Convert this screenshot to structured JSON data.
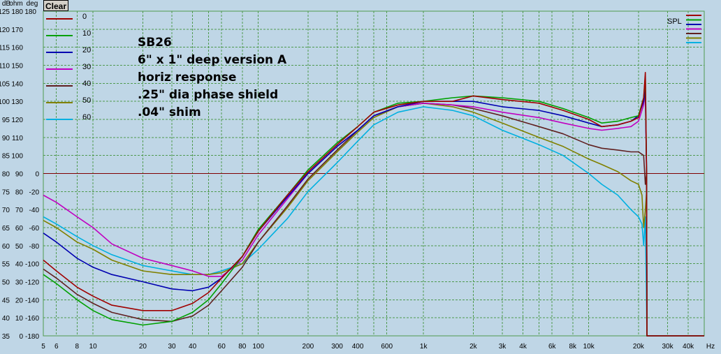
{
  "toolbar": {
    "clear_label": "Clear"
  },
  "colors": {
    "background": "#bfd6e6",
    "grid": "#4f9a4f",
    "reference_line": "#800000"
  },
  "chart_data": {
    "type": "line",
    "x_scale": "log",
    "xlim": [
      5,
      50000
    ],
    "x_ticks": [
      5,
      6,
      8,
      10,
      20,
      30,
      40,
      50,
      60,
      80,
      100,
      200,
      300,
      400,
      500,
      600,
      1000,
      2000,
      3000,
      4000,
      5000,
      6000,
      8000,
      10000,
      20000,
      30000,
      40000
    ],
    "x_tick_labels": [
      "5",
      "6",
      "8",
      "10",
      "20",
      "30",
      "40",
      "60",
      "80",
      "100",
      "200",
      "300",
      "400",
      "600",
      "1k",
      "2k",
      "3k",
      "4k",
      "6k",
      "8k",
      "10k",
      "20k",
      "30k",
      "40k"
    ],
    "x_tick_label_values": [
      5,
      6,
      8,
      10,
      20,
      30,
      40,
      60,
      80,
      100,
      200,
      300,
      400,
      600,
      1000,
      2000,
      3000,
      4000,
      6000,
      8000,
      10000,
      20000,
      30000,
      40000
    ],
    "x_unit": "Hz",
    "axis_headers": [
      "dB",
      "ohm",
      "deg"
    ],
    "ylim": [
      35,
      125
    ],
    "y_ticks": [
      35,
      40,
      45,
      50,
      55,
      60,
      65,
      70,
      75,
      80,
      85,
      90,
      95,
      100,
      105,
      110,
      115,
      120,
      125
    ],
    "y_tick_labels_db": [
      "35",
      "40",
      "45",
      "50",
      "55",
      "60",
      "65",
      "70",
      "75",
      "80",
      "85",
      "90",
      "95",
      "100",
      "105",
      "110",
      "115",
      "120",
      "125"
    ],
    "y_tick_labels_ohm": [
      "0",
      "10",
      "20",
      "30",
      "40",
      "50",
      "60",
      "70",
      "80",
      "90",
      "100",
      "110",
      "120",
      "130",
      "140",
      "150",
      "160",
      "170",
      "180"
    ],
    "y_tick_labels_deg": [
      "-180",
      "-160",
      "-140",
      "-120",
      "-100",
      "-80",
      "-60",
      "-40",
      "-20",
      "0",
      "",
      "",
      "",
      "",
      "",
      "",
      "",
      "",
      ""
    ],
    "reference_line_y": 80,
    "legend_right_label": "SPL",
    "annotation_lines": [
      "SB26",
      "6\" x 1\" deep version A",
      "horiz response",
      ".25\" dia phase shield",
      ".04\" shim"
    ],
    "series": [
      {
        "name": "0",
        "color": "#a00000",
        "points": [
          [
            5,
            56
          ],
          [
            6,
            53
          ],
          [
            8,
            48.5
          ],
          [
            10,
            46
          ],
          [
            13,
            43.5
          ],
          [
            20,
            42
          ],
          [
            30,
            42
          ],
          [
            40,
            44
          ],
          [
            50,
            47
          ],
          [
            60,
            51
          ],
          [
            80,
            57
          ],
          [
            100,
            64
          ],
          [
            150,
            74
          ],
          [
            200,
            80.5
          ],
          [
            300,
            88
          ],
          [
            400,
            93
          ],
          [
            500,
            97
          ],
          [
            700,
            99
          ],
          [
            1000,
            100
          ],
          [
            1500,
            100
          ],
          [
            2000,
            101.5
          ],
          [
            3000,
            100.5
          ],
          [
            5000,
            99.5
          ],
          [
            7000,
            97.5
          ],
          [
            10000,
            95
          ],
          [
            12000,
            93
          ],
          [
            15000,
            93.5
          ],
          [
            18000,
            94.5
          ],
          [
            20000,
            95.5
          ],
          [
            21500,
            101
          ],
          [
            22000,
            108
          ],
          [
            22400,
            80
          ],
          [
            22500,
            35
          ],
          [
            50000,
            35
          ]
        ]
      },
      {
        "name": "10",
        "color": "#00a000",
        "points": [
          [
            5,
            52
          ],
          [
            6,
            49.5
          ],
          [
            8,
            45
          ],
          [
            10,
            42
          ],
          [
            13,
            39.5
          ],
          [
            20,
            38
          ],
          [
            30,
            39
          ],
          [
            40,
            41.5
          ],
          [
            50,
            45
          ],
          [
            60,
            49.5
          ],
          [
            80,
            57
          ],
          [
            100,
            64.5
          ],
          [
            150,
            74
          ],
          [
            200,
            81
          ],
          [
            300,
            88.5
          ],
          [
            400,
            93
          ],
          [
            500,
            97
          ],
          [
            700,
            99.5
          ],
          [
            1000,
            100
          ],
          [
            1500,
            101
          ],
          [
            2000,
            101.5
          ],
          [
            3000,
            101
          ],
          [
            5000,
            100
          ],
          [
            7000,
            98
          ],
          [
            10000,
            95.5
          ],
          [
            12000,
            94
          ],
          [
            15000,
            94.5
          ],
          [
            18000,
            95.5
          ],
          [
            20000,
            96
          ],
          [
            21500,
            101
          ],
          [
            22000,
            107
          ],
          [
            22400,
            80
          ],
          [
            22500,
            35
          ],
          [
            50000,
            35
          ]
        ]
      },
      {
        "name": "20",
        "color": "#0000b0",
        "points": [
          [
            5,
            63.5
          ],
          [
            6,
            61
          ],
          [
            8,
            56.5
          ],
          [
            10,
            54
          ],
          [
            13,
            52
          ],
          [
            20,
            50
          ],
          [
            30,
            48
          ],
          [
            40,
            47.5
          ],
          [
            50,
            48.5
          ],
          [
            60,
            51
          ],
          [
            80,
            57
          ],
          [
            100,
            64
          ],
          [
            150,
            73.5
          ],
          [
            200,
            80
          ],
          [
            300,
            87.5
          ],
          [
            400,
            92
          ],
          [
            500,
            96
          ],
          [
            700,
            98.5
          ],
          [
            1000,
            100
          ],
          [
            1500,
            100
          ],
          [
            2000,
            100
          ],
          [
            3000,
            98.5
          ],
          [
            5000,
            97.5
          ],
          [
            7000,
            96
          ],
          [
            10000,
            94
          ],
          [
            12000,
            93
          ],
          [
            15000,
            93.5
          ],
          [
            18000,
            94.5
          ],
          [
            20000,
            96
          ],
          [
            21500,
            100
          ],
          [
            22000,
            103
          ],
          [
            22400,
            80
          ],
          [
            22500,
            35
          ],
          [
            50000,
            35
          ]
        ]
      },
      {
        "name": "30",
        "color": "#c000c0",
        "points": [
          [
            5,
            74
          ],
          [
            6,
            72
          ],
          [
            8,
            68
          ],
          [
            10,
            65
          ],
          [
            13,
            60.5
          ],
          [
            20,
            56.5
          ],
          [
            30,
            54.5
          ],
          [
            40,
            53
          ],
          [
            50,
            51.5
          ],
          [
            60,
            51.5
          ],
          [
            80,
            56
          ],
          [
            100,
            63
          ],
          [
            150,
            73
          ],
          [
            200,
            80
          ],
          [
            300,
            87.5
          ],
          [
            400,
            92
          ],
          [
            500,
            96
          ],
          [
            700,
            98.5
          ],
          [
            1000,
            99.5
          ],
          [
            1500,
            99
          ],
          [
            2000,
            98.5
          ],
          [
            3000,
            97
          ],
          [
            5000,
            95.5
          ],
          [
            7000,
            94
          ],
          [
            10000,
            92.5
          ],
          [
            12000,
            92
          ],
          [
            15000,
            92.5
          ],
          [
            18000,
            93
          ],
          [
            20000,
            94.5
          ],
          [
            21500,
            99
          ],
          [
            22000,
            103
          ],
          [
            22300,
            85
          ],
          [
            22400,
            80
          ],
          [
            22500,
            35
          ],
          [
            50000,
            35
          ]
        ]
      },
      {
        "name": "40",
        "color": "#602020",
        "points": [
          [
            5,
            53.5
          ],
          [
            6,
            51
          ],
          [
            8,
            46.5
          ],
          [
            10,
            44
          ],
          [
            13,
            41.5
          ],
          [
            20,
            39.5
          ],
          [
            30,
            39
          ],
          [
            40,
            40.5
          ],
          [
            50,
            43.5
          ],
          [
            60,
            47.5
          ],
          [
            80,
            54
          ],
          [
            100,
            61
          ],
          [
            150,
            71
          ],
          [
            200,
            78.5
          ],
          [
            300,
            86.5
          ],
          [
            400,
            92
          ],
          [
            500,
            96
          ],
          [
            700,
            98.5
          ],
          [
            1000,
            99.5
          ],
          [
            1500,
            99
          ],
          [
            2000,
            98
          ],
          [
            3000,
            96
          ],
          [
            5000,
            93
          ],
          [
            7000,
            91
          ],
          [
            10000,
            88
          ],
          [
            12000,
            87
          ],
          [
            15000,
            86.5
          ],
          [
            18000,
            86
          ],
          [
            20000,
            86
          ],
          [
            21500,
            85
          ],
          [
            22000,
            77
          ],
          [
            22400,
            80
          ],
          [
            22500,
            35
          ],
          [
            50000,
            35
          ]
        ]
      },
      {
        "name": "50",
        "color": "#808000",
        "points": [
          [
            5,
            67
          ],
          [
            6,
            65
          ],
          [
            8,
            61
          ],
          [
            10,
            59
          ],
          [
            13,
            56
          ],
          [
            20,
            53
          ],
          [
            30,
            52
          ],
          [
            40,
            52
          ],
          [
            50,
            52
          ],
          [
            60,
            52.5
          ],
          [
            80,
            55
          ],
          [
            100,
            61
          ],
          [
            150,
            70.5
          ],
          [
            200,
            78
          ],
          [
            300,
            86
          ],
          [
            400,
            91.5
          ],
          [
            500,
            95.5
          ],
          [
            700,
            98.5
          ],
          [
            1000,
            99.5
          ],
          [
            1500,
            98.5
          ],
          [
            2000,
            97
          ],
          [
            3000,
            94
          ],
          [
            5000,
            90
          ],
          [
            7000,
            87.5
          ],
          [
            10000,
            84
          ],
          [
            12000,
            82.5
          ],
          [
            15000,
            80.5
          ],
          [
            18000,
            78
          ],
          [
            20000,
            77
          ],
          [
            21000,
            74
          ],
          [
            21500,
            65
          ],
          [
            22000,
            70
          ],
          [
            22400,
            75
          ],
          [
            22500,
            35
          ],
          [
            50000,
            35
          ]
        ]
      },
      {
        "name": "60",
        "color": "#00b0e0",
        "points": [
          [
            5,
            68
          ],
          [
            6,
            66
          ],
          [
            8,
            62.5
          ],
          [
            10,
            60
          ],
          [
            13,
            57.5
          ],
          [
            20,
            54.5
          ],
          [
            30,
            53
          ],
          [
            40,
            52
          ],
          [
            50,
            52
          ],
          [
            60,
            53
          ],
          [
            80,
            55
          ],
          [
            100,
            59
          ],
          [
            150,
            67.5
          ],
          [
            200,
            75
          ],
          [
            300,
            83
          ],
          [
            400,
            89
          ],
          [
            500,
            93.5
          ],
          [
            700,
            97
          ],
          [
            1000,
            98.5
          ],
          [
            1500,
            97.5
          ],
          [
            2000,
            96
          ],
          [
            3000,
            92
          ],
          [
            5000,
            88
          ],
          [
            7000,
            85
          ],
          [
            10000,
            80
          ],
          [
            12000,
            77
          ],
          [
            15000,
            74
          ],
          [
            18000,
            70
          ],
          [
            20000,
            68
          ],
          [
            21000,
            66
          ],
          [
            21500,
            60
          ],
          [
            22000,
            68
          ],
          [
            22500,
            35
          ],
          [
            50000,
            35
          ]
        ]
      }
    ]
  }
}
